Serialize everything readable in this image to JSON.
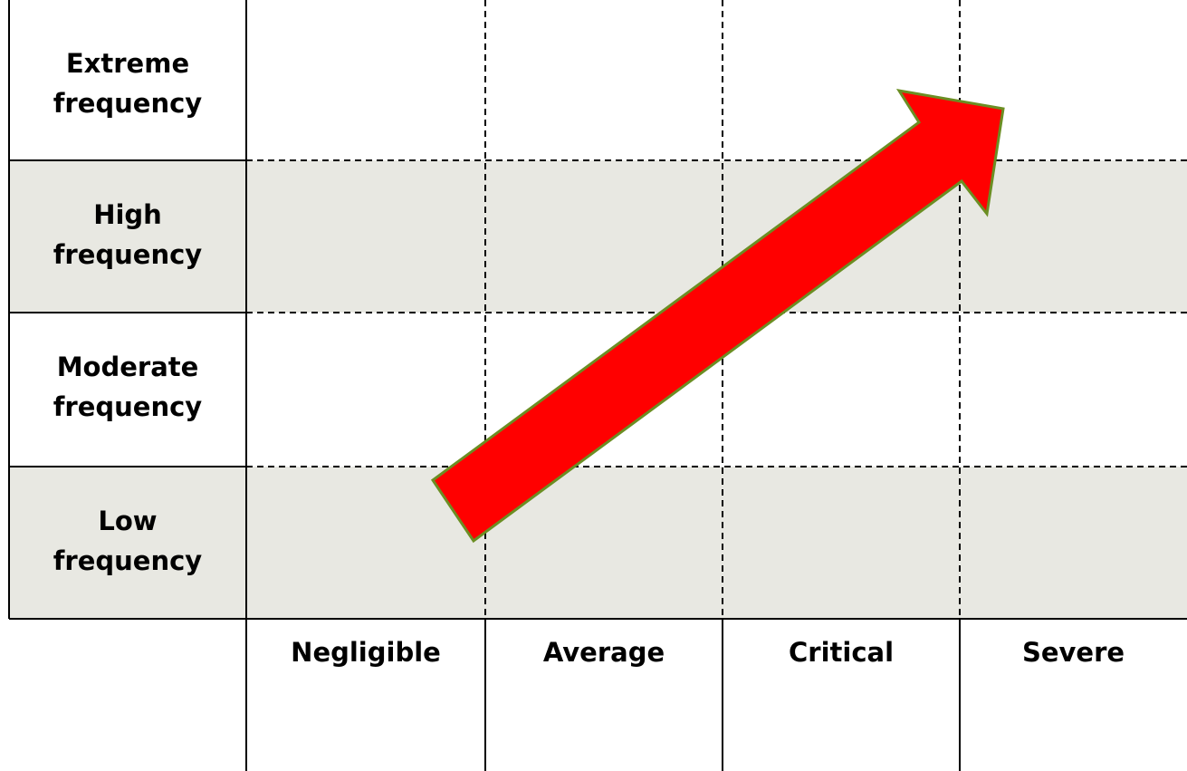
{
  "rows": [
    [
      "Extreme",
      "frequency"
    ],
    [
      "High",
      "frequency"
    ],
    [
      "Moderate",
      "frequency"
    ],
    [
      "Low",
      "frequency"
    ]
  ],
  "columns": [
    "Negligible",
    "Average",
    "Critical",
    "Severe"
  ]
}
